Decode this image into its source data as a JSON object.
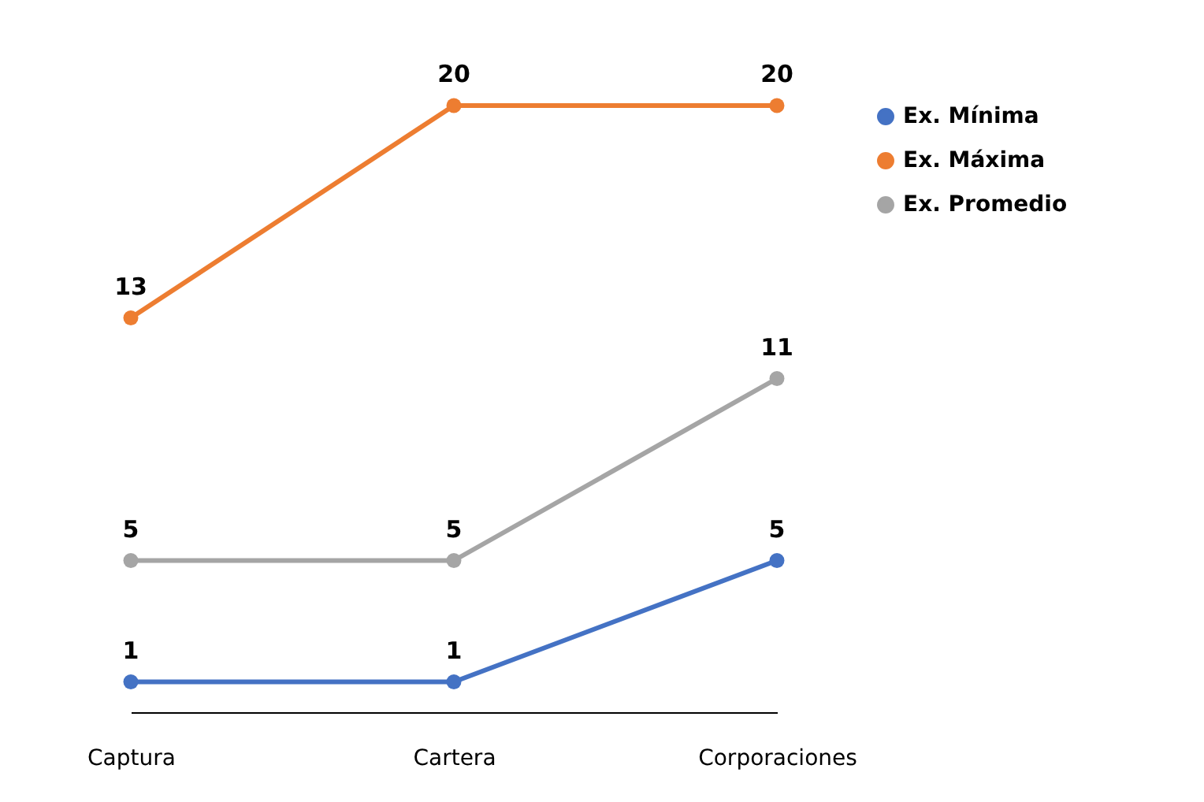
{
  "chart_data": {
    "type": "line",
    "categories": [
      "Captura",
      "Cartera",
      "Corporaciones"
    ],
    "series": [
      {
        "name": "Ex. Mínima",
        "color": "#4472c4",
        "values": [
          1,
          1,
          5
        ]
      },
      {
        "name": "Ex. Máxima",
        "color": "#ed7d31",
        "values": [
          13,
          20,
          20
        ]
      },
      {
        "name": "Ex. Promedio",
        "color": "#a5a5a5",
        "values": [
          5,
          5,
          11
        ]
      }
    ],
    "tick_labels": "x",
    "data_labels": true,
    "legend": "right",
    "marker": "circle",
    "line_style": "solid",
    "grid": false
  }
}
